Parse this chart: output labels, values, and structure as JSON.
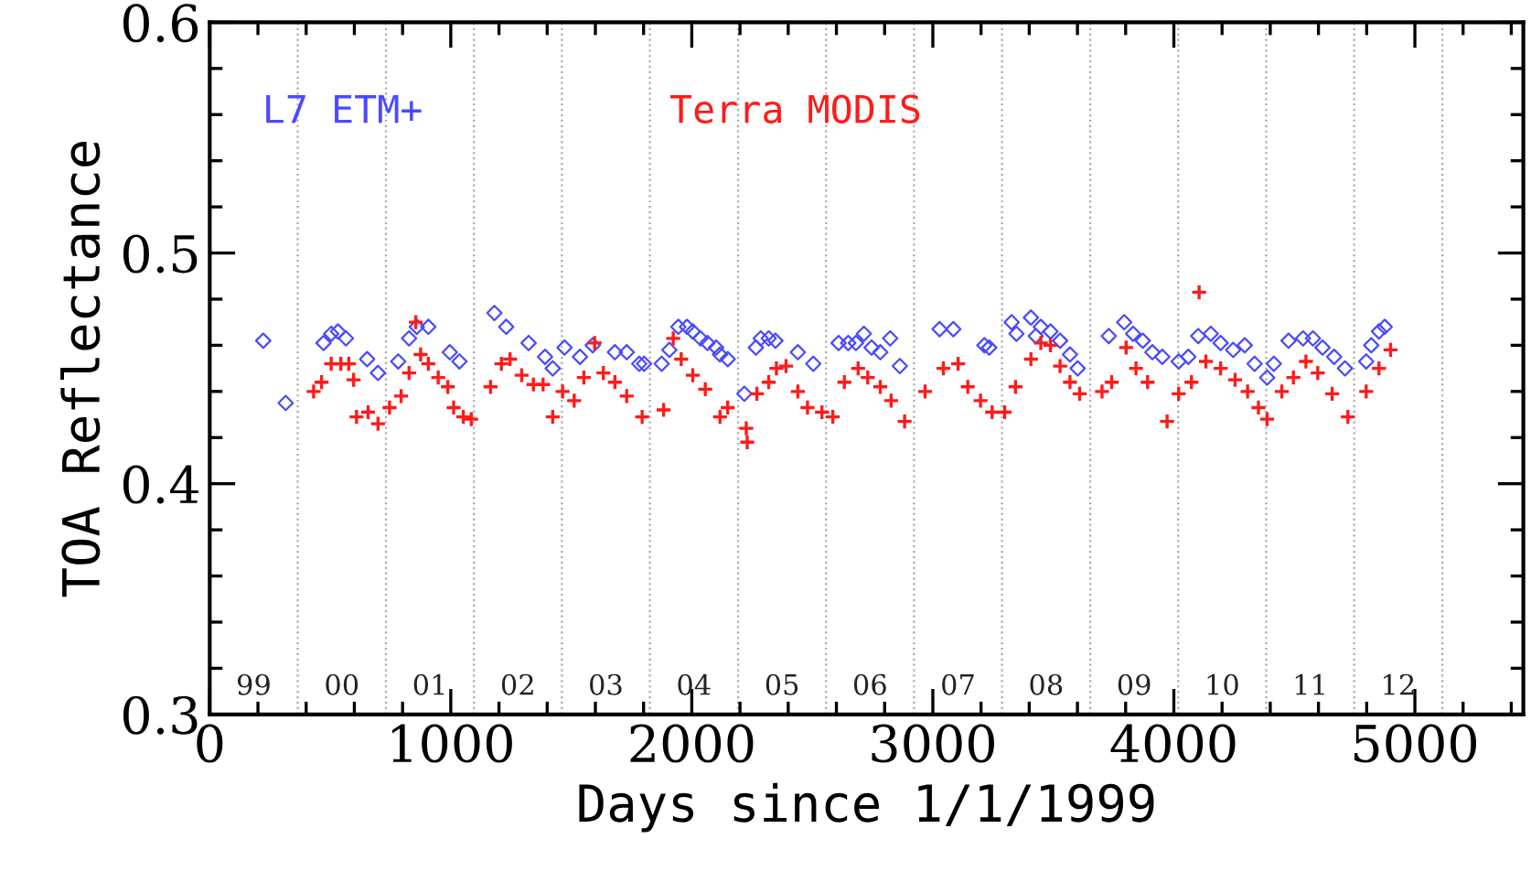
{
  "chart_data": {
    "type": "scatter",
    "xlabel": "Days since 1/1/1999",
    "ylabel": "TOA Reflectance",
    "xlim": [
      0,
      5450
    ],
    "xticks": [
      0,
      1000,
      2000,
      3000,
      4000,
      5000
    ],
    "ylim": [
      0.3,
      0.6
    ],
    "yticks": [
      0.3,
      0.4,
      0.5,
      0.6
    ],
    "grid": false,
    "legend": "top",
    "series": [
      {
        "name": "L7 ETM+",
        "color": "#4a4aff",
        "marker": "diamond",
        "x": [
          222,
          315,
          472,
          504,
          532,
          565,
          653,
          698,
          782,
          827,
          859,
          907,
          996,
          1036,
          1181,
          1230,
          1323,
          1391,
          1423,
          1472,
          1536,
          1589,
          1681,
          1730,
          1782,
          1802,
          1875,
          1907,
          1944,
          1980,
          2004,
          2036,
          2065,
          2101,
          2117,
          2149,
          2218,
          2266,
          2286,
          2319,
          2347,
          2440,
          2504,
          2609,
          2649,
          2681,
          2714,
          2746,
          2782,
          2823,
          2863,
          3028,
          3085,
          3214,
          3234,
          3327,
          3347,
          3407,
          3427,
          3448,
          3488,
          3528,
          3569,
          3601,
          3730,
          3794,
          3831,
          3871,
          3911,
          3952,
          4020,
          4060,
          4101,
          4153,
          4194,
          4246,
          4294,
          4335,
          4387,
          4415,
          4476,
          4536,
          4577,
          4617,
          4665,
          4710,
          4798,
          4819,
          4851,
          4875
        ],
        "values": [
          0.462,
          0.435,
          0.461,
          0.465,
          0.466,
          0.463,
          0.454,
          0.448,
          0.453,
          0.463,
          0.468,
          0.468,
          0.457,
          0.453,
          0.474,
          0.468,
          0.461,
          0.455,
          0.45,
          0.459,
          0.455,
          0.46,
          0.457,
          0.457,
          0.452,
          0.452,
          0.452,
          0.458,
          0.468,
          0.468,
          0.466,
          0.463,
          0.461,
          0.459,
          0.456,
          0.454,
          0.439,
          0.459,
          0.463,
          0.463,
          0.462,
          0.457,
          0.452,
          0.461,
          0.461,
          0.461,
          0.465,
          0.459,
          0.457,
          0.463,
          0.451,
          0.467,
          0.467,
          0.46,
          0.459,
          0.47,
          0.465,
          0.472,
          0.464,
          0.468,
          0.466,
          0.462,
          0.456,
          0.45,
          0.464,
          0.47,
          0.465,
          0.462,
          0.457,
          0.455,
          0.453,
          0.455,
          0.464,
          0.465,
          0.461,
          0.458,
          0.46,
          0.452,
          0.446,
          0.452,
          0.462,
          0.463,
          0.463,
          0.459,
          0.455,
          0.45,
          0.453,
          0.46,
          0.466,
          0.468
        ]
      },
      {
        "name": "Terra MODIS",
        "color": "#ff1a1a",
        "marker": "cross",
        "x": [
          431,
          464,
          504,
          544,
          577,
          597,
          609,
          657,
          698,
          746,
          794,
          827,
          855,
          875,
          907,
          948,
          988,
          1012,
          1052,
          1085,
          1165,
          1210,
          1246,
          1294,
          1343,
          1383,
          1423,
          1464,
          1512,
          1552,
          1597,
          1633,
          1681,
          1730,
          1794,
          1883,
          1923,
          1956,
          2004,
          2056,
          2117,
          2149,
          2226,
          2230,
          2270,
          2319,
          2351,
          2391,
          2440,
          2480,
          2540,
          2585,
          2633,
          2690,
          2730,
          2782,
          2827,
          2883,
          2968,
          3044,
          3105,
          3145,
          3198,
          3246,
          3298,
          3343,
          3407,
          3448,
          3488,
          3528,
          3569,
          3609,
          3702,
          3742,
          3802,
          3843,
          3891,
          3972,
          4020,
          4073,
          4105,
          4133,
          4194,
          4254,
          4306,
          4351,
          4387,
          4448,
          4496,
          4548,
          4597,
          4657,
          4722,
          4798,
          4851,
          4899
        ],
        "values": [
          0.44,
          0.444,
          0.452,
          0.452,
          0.452,
          0.445,
          0.429,
          0.431,
          0.426,
          0.433,
          0.438,
          0.448,
          0.47,
          0.456,
          0.452,
          0.446,
          0.442,
          0.433,
          0.429,
          0.428,
          0.442,
          0.452,
          0.454,
          0.447,
          0.443,
          0.443,
          0.429,
          0.44,
          0.436,
          0.446,
          0.461,
          0.448,
          0.444,
          0.438,
          0.429,
          0.432,
          0.463,
          0.454,
          0.447,
          0.441,
          0.429,
          0.433,
          0.424,
          0.418,
          0.439,
          0.444,
          0.45,
          0.451,
          0.44,
          0.433,
          0.431,
          0.429,
          0.444,
          0.45,
          0.446,
          0.442,
          0.436,
          0.427,
          0.44,
          0.45,
          0.452,
          0.442,
          0.436,
          0.431,
          0.431,
          0.442,
          0.454,
          0.461,
          0.46,
          0.451,
          0.444,
          0.439,
          0.44,
          0.444,
          0.459,
          0.45,
          0.444,
          0.427,
          0.439,
          0.444,
          0.483,
          0.453,
          0.45,
          0.445,
          0.44,
          0.433,
          0.428,
          0.44,
          0.446,
          0.453,
          0.448,
          0.439,
          0.429,
          0.44,
          0.45,
          0.458
        ]
      }
    ],
    "ref_lines": [
      {
        "axis": "x",
        "value": 365,
        "color": "#aaaaaa",
        "line_style": "dotted"
      },
      {
        "axis": "x",
        "value": 731,
        "color": "#aaaaaa",
        "line_style": "dotted"
      },
      {
        "axis": "x",
        "value": 1096,
        "color": "#aaaaaa",
        "line_style": "dotted"
      },
      {
        "axis": "x",
        "value": 1461,
        "color": "#aaaaaa",
        "line_style": "dotted"
      },
      {
        "axis": "x",
        "value": 1826,
        "color": "#aaaaaa",
        "line_style": "dotted"
      },
      {
        "axis": "x",
        "value": 2192,
        "color": "#aaaaaa",
        "line_style": "dotted"
      },
      {
        "axis": "x",
        "value": 2557,
        "color": "#aaaaaa",
        "line_style": "dotted"
      },
      {
        "axis": "x",
        "value": 2922,
        "color": "#aaaaaa",
        "line_style": "dotted"
      },
      {
        "axis": "x",
        "value": 3287,
        "color": "#aaaaaa",
        "line_style": "dotted"
      },
      {
        "axis": "x",
        "value": 3653,
        "color": "#aaaaaa",
        "line_style": "dotted"
      },
      {
        "axis": "x",
        "value": 4018,
        "color": "#aaaaaa",
        "line_style": "dotted"
      },
      {
        "axis": "x",
        "value": 4383,
        "color": "#aaaaaa",
        "line_style": "dotted"
      },
      {
        "axis": "x",
        "value": 4748,
        "color": "#aaaaaa",
        "line_style": "dotted"
      },
      {
        "axis": "x",
        "value": 5114,
        "color": "#aaaaaa",
        "line_style": "dotted"
      }
    ],
    "annotations": [
      "99",
      "00",
      "01",
      "02",
      "03",
      "04",
      "05",
      "06",
      "07",
      "08",
      "09",
      "10",
      "11",
      "12"
    ]
  }
}
